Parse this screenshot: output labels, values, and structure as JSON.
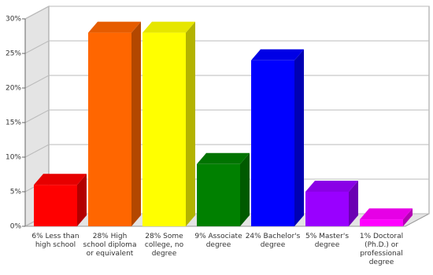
{
  "chart_data": {
    "type": "bar3d",
    "categories": [
      "6% Less than high school",
      "28% High school diploma or equivalent",
      "28% Some college, no degree",
      "9% Associate degree",
      "24% Bachelor's degree",
      "5% Master's degree",
      "1% Doctoral (Ph.D.) or professional degree"
    ],
    "values": [
      6,
      28,
      28,
      9,
      24,
      5,
      1
    ],
    "colors": [
      "#ff0000",
      "#ff6600",
      "#ffff00",
      "#008000",
      "#0000ff",
      "#9900ff",
      "#ff00ff"
    ],
    "ylim": [
      0,
      30
    ],
    "yticks": [
      {
        "value": 0,
        "label": "0%"
      },
      {
        "value": 5,
        "label": "5%"
      },
      {
        "value": 10,
        "label": "10%"
      },
      {
        "value": 15,
        "label": "15%"
      },
      {
        "value": 20,
        "label": "20%"
      },
      {
        "value": 25,
        "label": "25%"
      },
      {
        "value": 30,
        "label": "30%"
      }
    ],
    "grid": true
  }
}
